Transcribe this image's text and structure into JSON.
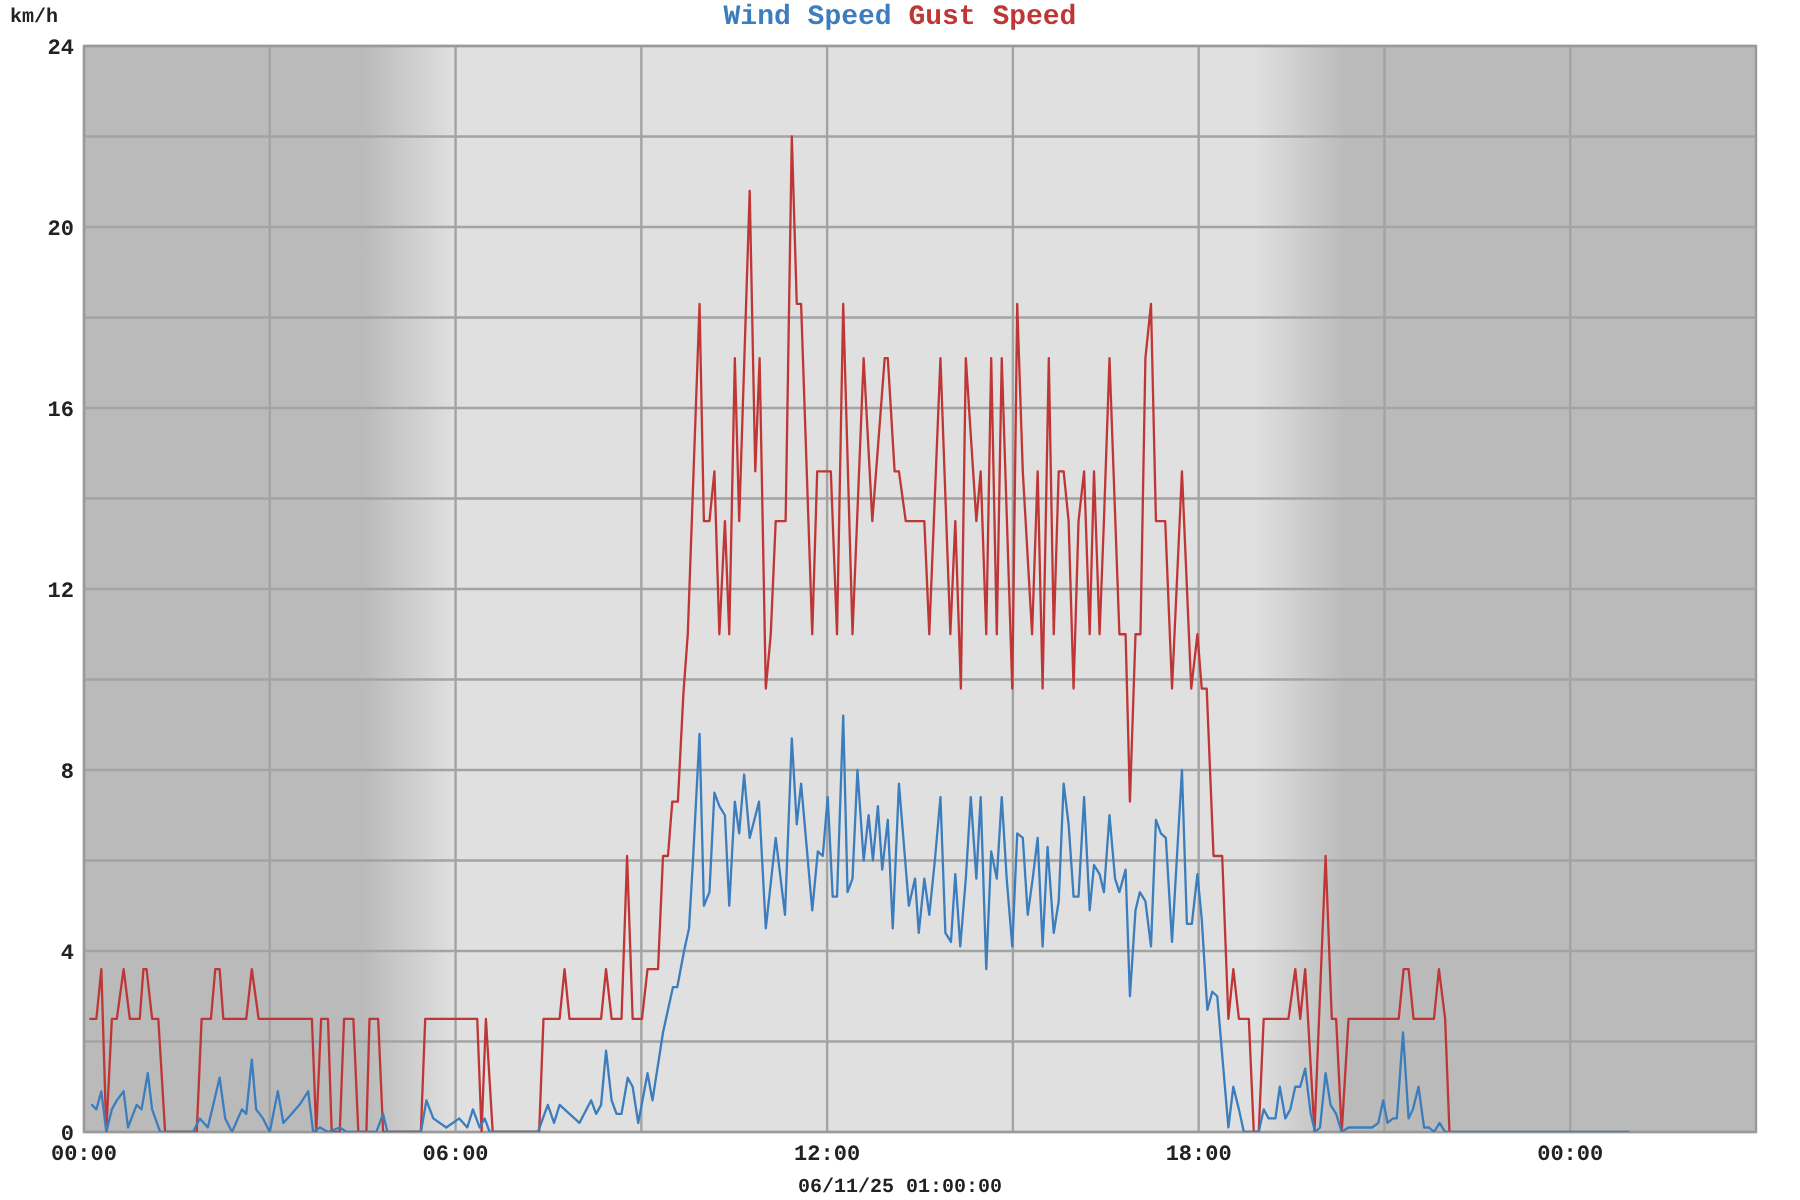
{
  "chart_data": {
    "type": "line",
    "xlabel": "06/11/25 01:00:00",
    "ylabel": "km/h",
    "legend": "top",
    "grid": true,
    "xlim": [
      0,
      27
    ],
    "ylim": [
      0,
      24
    ],
    "xticks": [
      {
        "value": 0,
        "label": "00:00"
      },
      {
        "value": 3,
        "label": null
      },
      {
        "value": 6,
        "label": "06:00"
      },
      {
        "value": 9,
        "label": null
      },
      {
        "value": 12,
        "label": "12:00"
      },
      {
        "value": 15,
        "label": null
      },
      {
        "value": 18,
        "label": "18:00"
      },
      {
        "value": 21,
        "label": null
      },
      {
        "value": 24,
        "label": "00:00"
      }
    ],
    "yticks": [
      0,
      {
        "value": 2,
        "label": null
      },
      4,
      {
        "value": 6,
        "label": null
      },
      8,
      {
        "value": 10,
        "label": null
      },
      12,
      {
        "value": 14,
        "label": null
      },
      16,
      {
        "value": 18,
        "label": null
      },
      20,
      {
        "value": 22,
        "label": null
      },
      24
    ],
    "bands": [
      {
        "axis": "x",
        "from": 0,
        "to": 6.0,
        "color": "#bababa"
      },
      {
        "axis": "x",
        "from": 18.9,
        "to": 27,
        "color": "#bababa"
      }
    ],
    "series": [
      {
        "name": "Wind Speed",
        "color": "#3b7dbd",
        "x": [
          0.13,
          0.2,
          0.28,
          0.36,
          0.45,
          0.53,
          0.64,
          0.71,
          0.85,
          0.93,
          1.03,
          1.1,
          1.23,
          1.76,
          1.87,
          2.0,
          2.19,
          2.28,
          2.39,
          2.55,
          2.62,
          2.71,
          2.78,
          2.89,
          3.0,
          3.13,
          3.22,
          3.35,
          3.48,
          3.62,
          3.7,
          3.81,
          3.94,
          4.13,
          4.24,
          4.72,
          4.83,
          4.9,
          5.44,
          5.53,
          5.64,
          5.85,
          6.06,
          6.19,
          6.28,
          6.39,
          6.47,
          6.55,
          7.33,
          7.49,
          7.59,
          7.68,
          8.0,
          8.19,
          8.27,
          8.35,
          8.43,
          8.52,
          8.6,
          8.68,
          8.78,
          8.86,
          8.95,
          9.1,
          9.18,
          9.35,
          9.51,
          9.58,
          9.69,
          9.77,
          9.83,
          9.94,
          10.01,
          10.1,
          10.18,
          10.26,
          10.35,
          10.42,
          10.51,
          10.58,
          10.66,
          10.75,
          10.9,
          11.01,
          11.17,
          11.32,
          11.43,
          11.51,
          11.58,
          11.76,
          11.85,
          11.93,
          12.01,
          12.09,
          12.16,
          12.26,
          12.33,
          12.41,
          12.49,
          12.59,
          12.67,
          12.74,
          12.82,
          12.89,
          12.98,
          13.06,
          13.16,
          13.32,
          13.42,
          13.48,
          13.57,
          13.65,
          13.74,
          13.83,
          13.91,
          14.0,
          14.07,
          14.15,
          14.24,
          14.32,
          14.41,
          14.48,
          14.57,
          14.65,
          14.74,
          14.82,
          14.9,
          14.99,
          15.07,
          15.16,
          15.24,
          15.32,
          15.4,
          15.48,
          15.56,
          15.66,
          15.74,
          15.82,
          15.9,
          15.98,
          16.06,
          16.15,
          16.24,
          16.31,
          16.4,
          16.47,
          16.56,
          16.65,
          16.72,
          16.82,
          16.89,
          16.98,
          17.05,
          17.14,
          17.23,
          17.31,
          17.39,
          17.47,
          17.57,
          17.73,
          17.81,
          17.89,
          17.98,
          18.05,
          18.14,
          18.22,
          18.3,
          18.38,
          18.48,
          18.56,
          18.65,
          18.73,
          18.97,
          19.05,
          19.13,
          19.24,
          19.31,
          19.4,
          19.48,
          19.56,
          19.64,
          19.72,
          19.81,
          19.88,
          19.96,
          20.05,
          20.13,
          20.22,
          20.31,
          20.42,
          20.8,
          20.9,
          20.98,
          21.05,
          21.14,
          21.2,
          21.3,
          21.39,
          21.46,
          21.55,
          21.64,
          21.72,
          21.8,
          21.89,
          21.98,
          24.94
        ],
        "values": [
          0.6,
          0.5,
          0.9,
          0,
          0.5,
          0.7,
          0.9,
          0.1,
          0.6,
          0.5,
          1.3,
          0.5,
          0,
          0,
          0.3,
          0.1,
          1.2,
          0.3,
          0,
          0.5,
          0.4,
          1.6,
          0.5,
          0.3,
          0,
          0.9,
          0.2,
          0.4,
          0.6,
          0.9,
          0,
          0.1,
          0,
          0.1,
          0,
          0,
          0.4,
          0,
          0,
          0.7,
          0.3,
          0.1,
          0.3,
          0.1,
          0.5,
          0.1,
          0.3,
          0,
          0,
          0.6,
          0.2,
          0.6,
          0.2,
          0.7,
          0.4,
          0.6,
          1.8,
          0.7,
          0.4,
          0.4,
          1.2,
          1.0,
          0.2,
          1.3,
          0.7,
          2.2,
          3.2,
          3.2,
          4.0,
          4.5,
          5.9,
          8.8,
          5.0,
          5.3,
          7.5,
          7.2,
          7.0,
          5.0,
          7.3,
          6.6,
          7.9,
          6.5,
          7.3,
          4.5,
          6.5,
          4.8,
          8.7,
          6.8,
          7.7,
          4.9,
          6.2,
          6.1,
          7.4,
          5.2,
          5.2,
          9.2,
          5.3,
          5.6,
          8.0,
          6.0,
          7.0,
          6.0,
          7.2,
          5.8,
          6.9,
          4.5,
          7.7,
          5.0,
          5.6,
          4.4,
          5.6,
          4.8,
          6.0,
          7.4,
          4.4,
          4.2,
          5.7,
          4.1,
          5.6,
          7.4,
          5.6,
          7.4,
          3.6,
          6.2,
          5.6,
          7.4,
          5.6,
          4.1,
          6.6,
          6.5,
          4.8,
          5.6,
          6.5,
          4.1,
          6.3,
          4.4,
          5.1,
          7.7,
          6.8,
          5.2,
          5.2,
          7.4,
          4.9,
          5.9,
          5.7,
          5.3,
          7.0,
          5.6,
          5.3,
          5.8,
          3.0,
          4.9,
          5.3,
          5.1,
          4.1,
          6.9,
          6.6,
          6.5,
          4.2,
          8.0,
          4.6,
          4.6,
          5.7,
          4.7,
          2.7,
          3.1,
          3.0,
          1.7,
          0.1,
          1.0,
          0.5,
          0,
          0,
          0.5,
          0.3,
          0.3,
          1.0,
          0.3,
          0.5,
          1.0,
          1.0,
          1.4,
          0.4,
          0,
          0.1,
          1.3,
          0.6,
          0.4,
          0,
          0.1,
          0.1,
          0.2,
          0.7,
          0.2,
          0.3,
          0.3,
          2.2,
          0.3,
          0.5,
          1.0,
          0.1,
          0.1,
          0,
          0.2,
          0,
          0
        ]
      },
      {
        "name": "Gust Speed",
        "color": "#bf3636",
        "x": [
          0.1,
          0.2,
          0.28,
          0.36,
          0.45,
          0.53,
          0.64,
          0.74,
          0.9,
          0.96,
          1.01,
          1.1,
          1.2,
          1.31,
          1.82,
          1.9,
          2.05,
          2.12,
          2.19,
          2.25,
          2.62,
          2.71,
          2.82,
          3.68,
          3.75,
          3.83,
          3.94,
          4.0,
          4.13,
          4.2,
          4.35,
          4.43,
          4.56,
          4.61,
          4.75,
          4.83,
          5.44,
          5.51,
          6.35,
          6.42,
          6.49,
          6.6,
          7.35,
          7.42,
          7.68,
          7.76,
          7.84,
          8.35,
          8.43,
          8.52,
          8.68,
          8.77,
          8.86,
          9.01,
          9.1,
          9.27,
          9.35,
          9.43,
          9.5,
          9.59,
          9.68,
          9.75,
          9.94,
          10.01,
          10.1,
          10.18,
          10.26,
          10.35,
          10.42,
          10.51,
          10.58,
          10.75,
          10.84,
          10.91,
          11.01,
          11.09,
          11.17,
          11.33,
          11.43,
          11.51,
          11.58,
          11.76,
          11.84,
          12.06,
          12.16,
          12.26,
          12.41,
          12.59,
          12.73,
          12.93,
          12.98,
          13.09,
          13.16,
          13.27,
          13.57,
          13.65,
          13.83,
          13.99,
          14.07,
          14.16,
          14.24,
          14.41,
          14.48,
          14.57,
          14.65,
          14.74,
          14.82,
          14.99,
          15.07,
          15.16,
          15.31,
          15.4,
          15.48,
          15.58,
          15.66,
          15.74,
          15.82,
          15.9,
          15.98,
          16.06,
          16.15,
          16.24,
          16.31,
          16.4,
          16.47,
          16.56,
          16.72,
          16.82,
          16.89,
          16.98,
          17.06,
          17.14,
          17.23,
          17.31,
          17.46,
          17.57,
          17.73,
          17.88,
          17.98,
          18.05,
          18.13,
          18.24,
          18.38,
          18.48,
          18.56,
          18.65,
          18.81,
          18.89,
          18.97,
          19.05,
          19.45,
          19.56,
          19.64,
          19.72,
          19.87,
          20.05,
          20.15,
          20.22,
          20.31,
          20.42,
          21.23,
          21.31,
          21.39,
          21.47,
          21.8,
          21.88,
          21.98,
          22.05
        ],
        "values": [
          2.5,
          2.5,
          3.6,
          0,
          2.5,
          2.5,
          3.6,
          2.5,
          2.5,
          3.6,
          3.6,
          2.5,
          2.5,
          0,
          0,
          2.5,
          2.5,
          3.6,
          3.6,
          2.5,
          2.5,
          3.6,
          2.5,
          2.5,
          0,
          2.5,
          2.5,
          0,
          0,
          2.5,
          2.5,
          0,
          0,
          2.5,
          2.5,
          0,
          0,
          2.5,
          2.5,
          0,
          2.5,
          0,
          0,
          2.5,
          2.5,
          3.6,
          2.5,
          2.5,
          3.6,
          2.5,
          2.5,
          6.1,
          2.5,
          2.5,
          3.6,
          3.6,
          6.1,
          6.1,
          7.3,
          7.3,
          9.7,
          11.0,
          18.3,
          13.5,
          13.5,
          14.6,
          11.0,
          13.5,
          11.0,
          17.1,
          13.5,
          20.8,
          14.6,
          17.1,
          9.8,
          11.0,
          13.5,
          13.5,
          22.0,
          18.3,
          18.3,
          11.0,
          14.6,
          14.6,
          11.0,
          18.3,
          11.0,
          17.1,
          13.5,
          17.1,
          17.1,
          14.6,
          14.6,
          13.5,
          13.5,
          11.0,
          17.1,
          11.0,
          13.5,
          9.8,
          17.1,
          13.5,
          14.6,
          11.0,
          17.1,
          11.0,
          17.1,
          9.8,
          18.3,
          14.6,
          11.0,
          14.6,
          9.8,
          17.1,
          11.0,
          14.6,
          14.6,
          13.5,
          9.8,
          13.5,
          14.6,
          11.0,
          14.6,
          11.0,
          13.5,
          17.1,
          11.0,
          11.0,
          7.3,
          11.0,
          11.0,
          17.1,
          18.3,
          13.5,
          13.5,
          9.8,
          14.6,
          9.8,
          11.0,
          9.8,
          9.8,
          6.1,
          6.1,
          2.5,
          3.6,
          2.5,
          2.5,
          0,
          0,
          2.5,
          2.5,
          3.6,
          2.5,
          3.6,
          0,
          6.1,
          2.5,
          2.5,
          0,
          2.5,
          2.5,
          3.6,
          3.6,
          2.5,
          2.5,
          3.6,
          2.5,
          0
        ]
      }
    ]
  }
}
